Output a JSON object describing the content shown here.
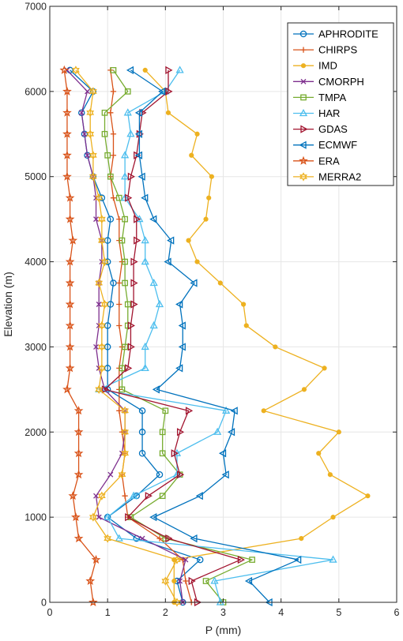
{
  "chart_data": {
    "type": "line",
    "xlabel": "P (mm)",
    "ylabel": "Elevation (m)",
    "xlim": [
      0,
      6
    ],
    "ylim": [
      0,
      7000
    ],
    "xticks": [
      0,
      1,
      2,
      3,
      4,
      5,
      6
    ],
    "yticks": [
      0,
      1000,
      2000,
      3000,
      4000,
      5000,
      6000,
      7000
    ],
    "grid": true,
    "legend_position": "top-right",
    "y": [
      0,
      250,
      500,
      750,
      1000,
      1250,
      1500,
      1750,
      2000,
      2250,
      2500,
      2750,
      3000,
      3250,
      3500,
      3750,
      4000,
      4250,
      4500,
      4750,
      5000,
      5250,
      5500,
      5750,
      6000,
      6250
    ],
    "series": [
      {
        "name": "APHRODITE",
        "color": "#0072BD",
        "marker": "circle",
        "x": [
          2.3,
          2.2,
          2.6,
          1.5,
          1.0,
          1.5,
          1.9,
          1.6,
          1.6,
          1.6,
          1.0,
          1.0,
          1.0,
          1.0,
          1.05,
          1.1,
          1.0,
          1.0,
          1.05,
          0.9,
          0.75,
          0.65,
          0.6,
          0.55,
          0.75,
          0.35
        ]
      },
      {
        "name": "CHIRPS",
        "color": "#D95319",
        "marker": "plus",
        "x": [
          2.45,
          2.35,
          2.3,
          1.9,
          1.35,
          1.3,
          1.25,
          1.3,
          1.25,
          1.2,
          1.2,
          1.2,
          1.25,
          1.2,
          1.2,
          1.2,
          1.25,
          1.2,
          1.2,
          1.1,
          1.05,
          1.1,
          1.1,
          1.05,
          1.1,
          1.05
        ]
      },
      {
        "name": "IMD",
        "color": "#EDB120",
        "marker": "dot",
        "x": [
          2.15,
          2.15,
          2.15,
          4.35,
          4.9,
          5.5,
          4.85,
          4.65,
          5.0,
          3.7,
          4.4,
          4.75,
          3.9,
          3.4,
          3.35,
          2.95,
          2.55,
          2.4,
          2.7,
          2.75,
          2.8,
          2.45,
          2.55,
          2.05,
          2.0,
          1.65
        ]
      },
      {
        "name": "CMORPH",
        "color": "#7E2F8E",
        "marker": "x",
        "x": [
          2.3,
          2.25,
          2.35,
          1.6,
          0.85,
          0.8,
          1.05,
          1.25,
          1.3,
          1.3,
          0.95,
          0.85,
          0.8,
          0.85,
          0.85,
          0.85,
          0.9,
          0.9,
          0.8,
          0.8,
          0.75,
          0.65,
          0.6,
          0.55,
          0.65,
          0.3
        ]
      },
      {
        "name": "TMPA",
        "color": "#77AC30",
        "marker": "square",
        "x": [
          3.0,
          2.7,
          3.5,
          2.0,
          1.4,
          1.95,
          2.25,
          1.95,
          1.95,
          2.0,
          1.25,
          1.25,
          1.3,
          1.35,
          1.35,
          1.3,
          1.3,
          1.25,
          1.3,
          1.2,
          1.05,
          1.0,
          0.95,
          0.95,
          1.35,
          1.1
        ]
      },
      {
        "name": "HAR",
        "color": "#4DBEEE",
        "marker": "triangle-up",
        "x": [
          2.95,
          2.85,
          4.9,
          1.2,
          1.0,
          1.45,
          2.2,
          2.2,
          2.9,
          3.05,
          0.85,
          1.65,
          1.65,
          1.8,
          1.9,
          1.8,
          1.65,
          1.65,
          1.55,
          1.3,
          1.3,
          1.3,
          1.4,
          1.35,
          2.0,
          2.25
        ]
      },
      {
        "name": "GDAS",
        "color": "#A2142F",
        "marker": "triangle-right",
        "x": [
          2.55,
          2.45,
          3.3,
          2.05,
          1.35,
          1.7,
          2.25,
          2.15,
          2.25,
          2.4,
          0.95,
          1.35,
          1.4,
          1.4,
          1.45,
          1.45,
          1.45,
          1.5,
          1.5,
          1.35,
          1.4,
          1.5,
          1.55,
          1.6,
          2.05,
          2.05
        ]
      },
      {
        "name": "ECMWF",
        "color": "#0072BD",
        "marker": "triangle-left",
        "x": [
          3.8,
          3.45,
          4.3,
          2.5,
          1.8,
          2.6,
          3.05,
          3.0,
          3.15,
          3.2,
          1.85,
          2.25,
          2.3,
          2.3,
          2.25,
          2.5,
          2.05,
          2.1,
          1.8,
          1.65,
          1.6,
          1.55,
          1.55,
          1.55,
          1.95,
          1.4
        ]
      },
      {
        "name": "ERA",
        "color": "#D95319",
        "marker": "star",
        "x": [
          0.75,
          0.7,
          0.8,
          0.5,
          0.45,
          0.4,
          0.5,
          0.5,
          0.5,
          0.5,
          0.3,
          0.35,
          0.35,
          0.35,
          0.35,
          0.35,
          0.35,
          0.4,
          0.35,
          0.35,
          0.3,
          0.3,
          0.3,
          0.3,
          0.3,
          0.25
        ]
      },
      {
        "name": "MERRA2",
        "color": "#EDB120",
        "marker": "hexagram",
        "x": [
          2.2,
          2.0,
          2.2,
          1.0,
          0.75,
          0.9,
          1.25,
          1.3,
          1.3,
          1.3,
          0.85,
          0.9,
          0.9,
          0.9,
          0.95,
          0.85,
          0.95,
          0.9,
          0.9,
          0.85,
          0.75,
          0.75,
          0.7,
          0.7,
          0.75,
          0.45
        ]
      }
    ]
  }
}
